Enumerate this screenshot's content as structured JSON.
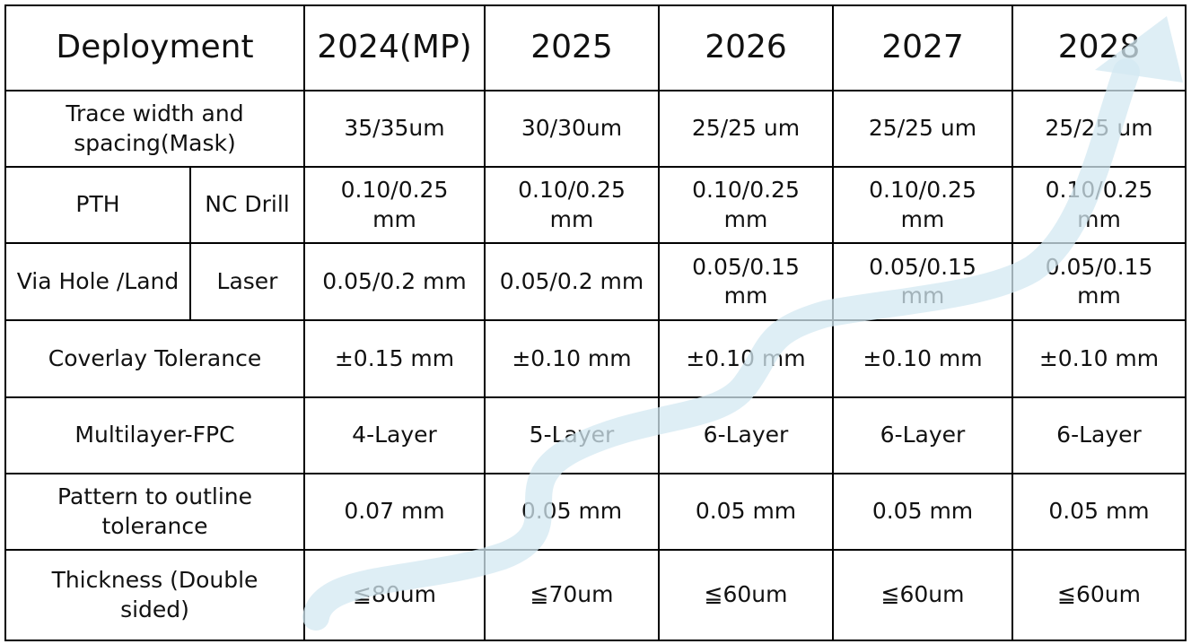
{
  "table": {
    "header": [
      "Deployment",
      "2024(MP)",
      "2025",
      "2026",
      "2027",
      "2028"
    ],
    "rows": [
      [
        "Trace width and\nspacing(Mask)",
        "35/35um",
        "30/30um",
        "25/25 um",
        "25/25 um",
        "25/25 um"
      ],
      [
        "PTH",
        "NC Drill",
        "0.10/0.25\nmm",
        "0.10/0.25\nmm",
        "0.10/0.25\nmm",
        "0.10/0.25\nmm",
        "0.10/0.25\nmm"
      ],
      [
        "Via Hole /Land",
        "Laser",
        "0.05/0.2 mm",
        "0.05/0.2 mm",
        "0.05/0.15\nmm",
        "0.05/0.15\nmm",
        "0.05/0.15\nmm"
      ],
      [
        "Coverlay  Tolerance",
        "±0.15 mm",
        "±0.10 mm",
        "±0.10 mm",
        "±0.10 mm",
        "±0.10 mm"
      ],
      [
        "Multilayer-FPC",
        "4-Layer",
        "5-Layer",
        "6-Layer",
        "6-Layer",
        "6-Layer"
      ],
      [
        "Pattern to outline\ntolerance",
        "0.07  mm",
        "0.05  mm",
        "0.05  mm",
        "0.05  mm",
        "0.05  mm"
      ],
      [
        "Thickness (Double\nsided)",
        "≦80um",
        "≦70um",
        "≦60um",
        "≦60um",
        "≦60um"
      ]
    ]
  }
}
